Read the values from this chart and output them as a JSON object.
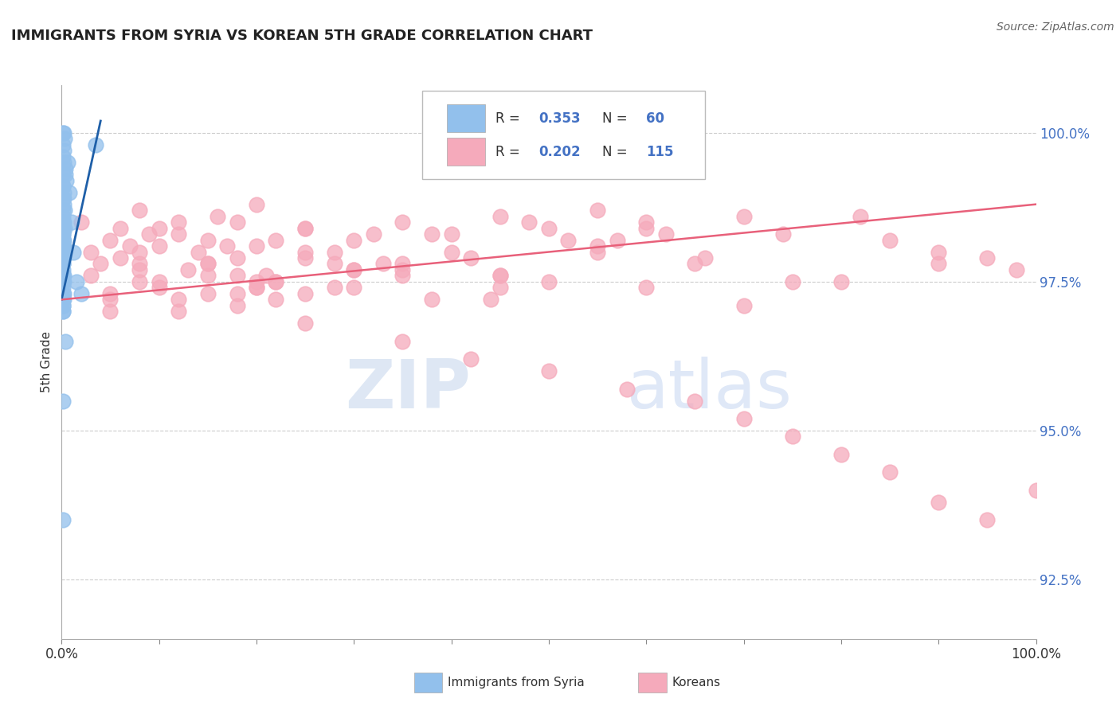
{
  "title": "IMMIGRANTS FROM SYRIA VS KOREAN 5TH GRADE CORRELATION CHART",
  "source": "Source: ZipAtlas.com",
  "ylabel": "5th Grade",
  "yticks": [
    100.0,
    97.5,
    95.0,
    92.5
  ],
  "ytick_labels": [
    "100.0%",
    "97.5%",
    "95.0%",
    "92.5%"
  ],
  "xlim": [
    0.0,
    100.0
  ],
  "ylim": [
    91.5,
    100.8
  ],
  "legend_blue_label": "Immigrants from Syria",
  "legend_pink_label": "Koreans",
  "blue_color": "#92C0EC",
  "pink_color": "#F5AABB",
  "blue_edge_color": "#92C0EC",
  "pink_edge_color": "#F5AABB",
  "blue_line_color": "#1E5FA8",
  "pink_line_color": "#E8607A",
  "r_n_color": "#4472C4",
  "watermark_zip": "ZIP",
  "watermark_atlas": "atlas",
  "blue_scatter_x": [
    0.1,
    0.2,
    0.3,
    0.15,
    0.25,
    0.1,
    0.2,
    0.35,
    0.4,
    0.5,
    0.1,
    0.2,
    0.15,
    0.25,
    0.3,
    0.1,
    0.2,
    0.3,
    0.1,
    0.15,
    0.1,
    0.1,
    0.2,
    0.15,
    0.1,
    0.2,
    0.15,
    0.1,
    0.2,
    0.25,
    0.1,
    0.1,
    0.15,
    0.2,
    0.1,
    0.15,
    0.2,
    0.1,
    0.15,
    0.1,
    0.1,
    0.15,
    0.1,
    0.2,
    0.1,
    0.15,
    0.1,
    0.2,
    0.1,
    0.15,
    0.6,
    0.8,
    1.0,
    1.2,
    1.5,
    2.0,
    3.5,
    0.4,
    0.1,
    0.1
  ],
  "blue_scatter_y": [
    100.0,
    100.0,
    99.9,
    99.8,
    99.7,
    99.6,
    99.5,
    99.4,
    99.3,
    99.2,
    99.1,
    99.0,
    98.9,
    98.8,
    98.7,
    98.6,
    98.5,
    98.4,
    98.3,
    98.2,
    98.1,
    98.0,
    97.9,
    97.8,
    97.7,
    97.6,
    97.5,
    97.4,
    97.3,
    97.2,
    97.1,
    97.0,
    97.2,
    97.5,
    97.8,
    98.0,
    98.2,
    98.4,
    97.0,
    97.1,
    97.3,
    97.6,
    97.9,
    98.1,
    98.3,
    98.5,
    98.7,
    98.9,
    99.1,
    99.3,
    99.5,
    99.0,
    98.5,
    98.0,
    97.5,
    97.3,
    99.8,
    96.5,
    95.5,
    93.5
  ],
  "pink_scatter_x": [
    2.0,
    5.0,
    8.0,
    12.0,
    16.0,
    20.0,
    4.0,
    7.0,
    10.0,
    14.0,
    18.0,
    22.0,
    6.0,
    9.0,
    13.0,
    17.0,
    21.0,
    25.0,
    30.0,
    35.0,
    40.0,
    45.0,
    50.0,
    55.0,
    60.0,
    3.0,
    8.0,
    15.0,
    22.0,
    28.0,
    33.0,
    38.0,
    12.0,
    18.0,
    25.0,
    30.0,
    20.0,
    35.0,
    28.0,
    22.0,
    15.0,
    10.0,
    5.0,
    18.0,
    25.0,
    30.0,
    12.0,
    20.0,
    8.0,
    15.0,
    5.0,
    10.0,
    18.0,
    25.0,
    35.0,
    42.0,
    50.0,
    58.0,
    65.0,
    70.0,
    75.0,
    80.0,
    85.0,
    90.0,
    95.0,
    100.0,
    55.0,
    62.0,
    45.0,
    38.0,
    28.0,
    20.0,
    12.0,
    8.0,
    5.0,
    3.0,
    18.0,
    25.0,
    35.0,
    45.0,
    55.0,
    65.0,
    75.0,
    85.0,
    95.0,
    60.0,
    70.0,
    52.0,
    42.0,
    32.0,
    22.0,
    15.0,
    10.0,
    6.0,
    40.0,
    30.0,
    20.0,
    48.0,
    57.0,
    66.0,
    74.0,
    82.0,
    90.0,
    98.0,
    44.0,
    50.0,
    35.0,
    25.0,
    15.0,
    8.0,
    60.0,
    70.0,
    80.0,
    90.0,
    45.0
  ],
  "pink_scatter_y": [
    98.5,
    98.2,
    98.7,
    98.3,
    98.6,
    98.8,
    97.8,
    98.1,
    98.4,
    98.0,
    98.5,
    98.2,
    97.9,
    98.3,
    97.7,
    98.1,
    97.6,
    98.4,
    98.2,
    98.5,
    98.3,
    98.6,
    98.4,
    98.7,
    98.5,
    98.0,
    97.8,
    98.2,
    97.5,
    98.0,
    97.8,
    98.3,
    98.5,
    97.9,
    98.4,
    97.7,
    98.1,
    97.6,
    97.4,
    97.2,
    97.8,
    97.5,
    97.3,
    97.6,
    97.9,
    97.4,
    97.2,
    97.5,
    97.7,
    97.3,
    97.0,
    97.4,
    97.1,
    96.8,
    96.5,
    96.2,
    96.0,
    95.7,
    95.5,
    95.2,
    94.9,
    94.6,
    94.3,
    93.8,
    93.5,
    94.0,
    98.0,
    98.3,
    97.6,
    97.2,
    97.8,
    97.4,
    97.0,
    97.5,
    97.2,
    97.6,
    97.3,
    98.0,
    97.7,
    97.4,
    98.1,
    97.8,
    97.5,
    98.2,
    97.9,
    98.4,
    98.6,
    98.2,
    97.9,
    98.3,
    97.5,
    97.8,
    98.1,
    98.4,
    98.0,
    97.7,
    97.4,
    98.5,
    98.2,
    97.9,
    98.3,
    98.6,
    98.0,
    97.7,
    97.2,
    97.5,
    97.8,
    97.3,
    97.6,
    98.0,
    97.4,
    97.1,
    97.5,
    97.8,
    97.6
  ],
  "blue_trend_x": [
    0.0,
    4.0
  ],
  "blue_trend_y": [
    97.2,
    100.2
  ],
  "pink_trend_x": [
    0.0,
    100.0
  ],
  "pink_trend_y": [
    97.2,
    98.8
  ]
}
